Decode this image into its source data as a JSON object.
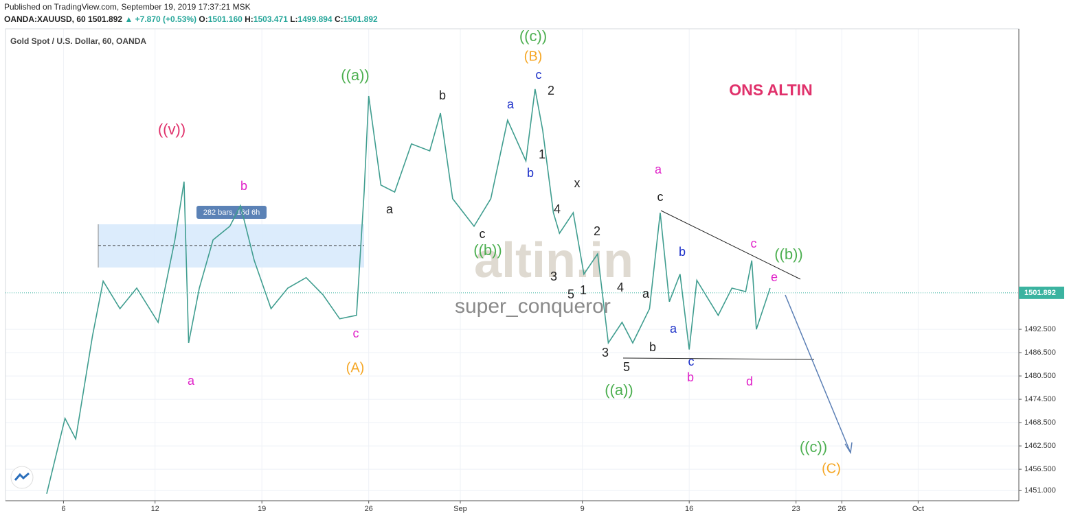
{
  "header": {
    "published": "Published on TradingView.com, September 19, 2019 17:37:21 MSK",
    "symbol": "OANDA:XAUUSD, 60",
    "price": "1501.892",
    "change": "▲ +7.870 (+0.53%)",
    "o_label": "O:",
    "o": "1501.160",
    "h_label": "H:",
    "h": "1503.471",
    "l_label": "L:",
    "l": "1499.894",
    "c_label": "C:",
    "c": "1501.892"
  },
  "chart_data": {
    "type": "line",
    "title": "Gold Spot / U.S. Dollar, 60, OANDA",
    "headline": "ONS ALTIN",
    "watermark": "altin.in",
    "author": "super_conqueror",
    "measure_label": "282 bars, 16d 6h",
    "color": "#3f9d8f",
    "x": [
      4.9,
      6.1,
      6.8,
      7.9,
      8.6,
      9.7,
      10.8,
      12.2,
      13.3,
      13.9,
      14.2,
      14.9,
      15.8,
      16.9,
      17.6,
      18.5,
      19.6,
      20.7,
      21.9,
      23.0,
      24.1,
      25.2,
      25.7,
      26.0,
      26.8,
      27.7,
      28.8,
      30.0,
      30.7,
      31.5,
      32.9,
      34.0,
      35.1,
      36.3,
      36.9,
      37.4,
      38.1,
      38.5,
      39.4,
      40.1,
      41.0,
      41.7,
      42.6,
      43.3,
      44.4,
      45.1,
      45.7,
      46.4,
      47.0,
      47.5,
      48.9,
      49.8,
      50.7,
      51.1,
      51.4,
      52.3
    ],
    "values": [
      1450.2,
      1469.6,
      1464.3,
      1490.8,
      1504.9,
      1497.8,
      1503.1,
      1494.3,
      1515.5,
      1530.5,
      1489.0,
      1503.1,
      1515.5,
      1519.0,
      1524.3,
      1510.2,
      1497.8,
      1503.1,
      1505.8,
      1501.4,
      1495.2,
      1496.1,
      1527.8,
      1552.5,
      1529.6,
      1527.8,
      1540.2,
      1538.4,
      1548.1,
      1526.1,
      1519.0,
      1526.1,
      1546.3,
      1535.8,
      1554.3,
      1543.7,
      1522.5,
      1517.2,
      1522.5,
      1506.7,
      1511.9,
      1489.0,
      1494.3,
      1489.0,
      1497.8,
      1522.5,
      1499.6,
      1506.7,
      1487.3,
      1505.1,
      1496.1,
      1503.1,
      1502.2,
      1510.2,
      1492.5,
      1503.1
    ],
    "xlim": [
      2.2,
      68.6
    ],
    "ylim": [
      1448.4,
      1569.8
    ],
    "xticks": [
      6,
      12,
      19,
      26,
      {
        "value": 32,
        "label": "Sep"
      },
      {
        "value": 40,
        "label": "9"
      },
      {
        "value": 47,
        "label": "16"
      },
      {
        "value": 54,
        "label": "23"
      },
      {
        "value": 57,
        "label": "26"
      },
      {
        "value": 62,
        "label": "Oct"
      }
    ],
    "yticks": [
      {
        "value": 1451,
        "label": "1451.000"
      },
      {
        "value": 1456.5,
        "label": "1456.500"
      },
      {
        "value": 1462.5,
        "label": "1462.500"
      },
      {
        "value": 1468.5,
        "label": "1468.500"
      },
      {
        "value": 1474.5,
        "label": "1474.500"
      },
      {
        "value": 1480.5,
        "label": "1480.500"
      },
      {
        "value": 1486.5,
        "label": "1486.500"
      },
      {
        "value": 1492.5,
        "label": "1492.500"
      }
    ],
    "last_price": {
      "value": 1501.892,
      "label": "1501.892"
    },
    "grid": true,
    "annotations": [
      {
        "text": "((v))",
        "color": "#e0316b"
      },
      {
        "text": "b",
        "color": "#e020c8"
      },
      {
        "text": "a",
        "color": "#e020c8"
      },
      {
        "text": "c",
        "color": "#e020c8"
      },
      {
        "text": "((a))",
        "color": "#4caf50"
      },
      {
        "text": "(A)",
        "color": "#f5a623"
      },
      {
        "text": "a",
        "color": "#222222"
      },
      {
        "text": "b",
        "color": "#222222"
      },
      {
        "text": "c",
        "color": "#222222"
      },
      {
        "text": "((b))",
        "color": "#4caf50"
      },
      {
        "text": "((c))",
        "color": "#4caf50"
      },
      {
        "text": "(B)",
        "color": "#f5a623"
      },
      {
        "text": "c",
        "color": "#1b2fc8"
      },
      {
        "text": "a",
        "color": "#1b2fc8"
      },
      {
        "text": "b",
        "color": "#1b2fc8"
      },
      {
        "text": "2",
        "color": "#222222"
      },
      {
        "text": "1",
        "color": "#222222"
      },
      {
        "text": "x",
        "color": "#222222"
      },
      {
        "text": "4",
        "color": "#222222"
      },
      {
        "text": "2",
        "color": "#222222"
      },
      {
        "text": "3",
        "color": "#222222"
      },
      {
        "text": "5",
        "color": "#222222"
      },
      {
        "text": "1",
        "color": "#222222"
      },
      {
        "text": "4",
        "color": "#222222"
      },
      {
        "text": "3",
        "color": "#222222"
      },
      {
        "text": "5",
        "color": "#222222"
      },
      {
        "text": "((a))",
        "color": "#4caf50"
      },
      {
        "text": "a",
        "color": "#222222"
      },
      {
        "text": "b",
        "color": "#222222"
      },
      {
        "text": "a",
        "color": "#e020c8"
      },
      {
        "text": "c",
        "color": "#222222"
      },
      {
        "text": "b",
        "color": "#1b2fc8"
      },
      {
        "text": "a",
        "color": "#1b2fc8"
      },
      {
        "text": "c",
        "color": "#1b2fc8"
      },
      {
        "text": "b",
        "color": "#e020c8"
      },
      {
        "text": "c",
        "color": "#e020c8"
      },
      {
        "text": "((b))",
        "color": "#4caf50"
      },
      {
        "text": "e",
        "color": "#e020c8"
      },
      {
        "text": "d",
        "color": "#e020c8"
      },
      {
        "text": "((c))",
        "color": "#4caf50"
      },
      {
        "text": "(C)",
        "color": "#f5a623"
      }
    ]
  }
}
